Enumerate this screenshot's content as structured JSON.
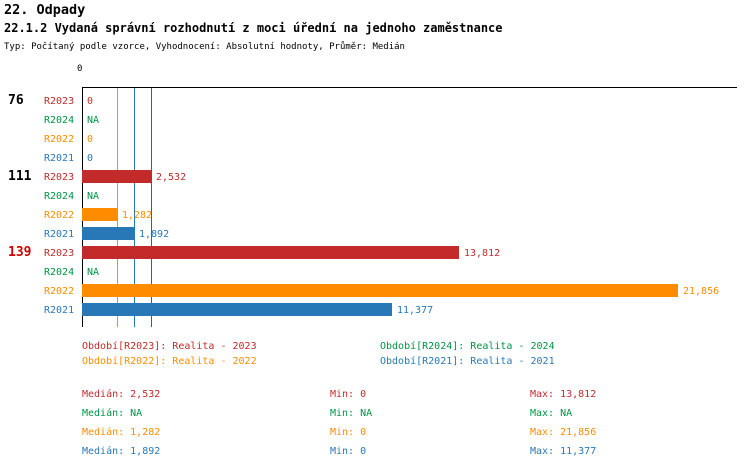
{
  "header": {
    "section": "22. Odpady",
    "title": "22.1.2 Vydaná správní rozhodnutí z moci úřední na jednoho zaměstnance",
    "subtitle": "Typ: Počítaný podle vzorce, Vyhodnocení: Absolutní hodnoty, Průměr: Medián"
  },
  "colors": {
    "r2023": "#c32b2b",
    "r2024": "#009444",
    "r2022": "#ff8c00",
    "r2021": "#2878b8",
    "highlight": "#cc0000",
    "axis": "#000000"
  },
  "chart_data": {
    "type": "bar",
    "orientation": "horizontal",
    "axis_tick": "0",
    "xlim": [
      0,
      21856
    ],
    "grid": false,
    "groups": [
      {
        "label": "76",
        "highlight": false,
        "bars": [
          {
            "series": "R2023",
            "value": 0,
            "display": "0"
          },
          {
            "series": "R2024",
            "value": null,
            "display": "NA"
          },
          {
            "series": "R2022",
            "value": 0,
            "display": "0"
          },
          {
            "series": "R2021",
            "value": 0,
            "display": "0"
          }
        ]
      },
      {
        "label": "111",
        "highlight": false,
        "bars": [
          {
            "series": "R2023",
            "value": 2532,
            "display": "2,532"
          },
          {
            "series": "R2024",
            "value": null,
            "display": "NA"
          },
          {
            "series": "R2022",
            "value": 1282,
            "display": "1,282"
          },
          {
            "series": "R2021",
            "value": 1892,
            "display": "1,892"
          }
        ]
      },
      {
        "label": "139",
        "highlight": true,
        "bars": [
          {
            "series": "R2023",
            "value": 13812,
            "display": "13,812"
          },
          {
            "series": "R2024",
            "value": null,
            "display": "NA"
          },
          {
            "series": "R2022",
            "value": 21856,
            "display": "21,856"
          },
          {
            "series": "R2021",
            "value": 11377,
            "display": "11,377"
          }
        ]
      }
    ],
    "median_lines": [
      {
        "series": "R2022",
        "value": 1282
      },
      {
        "series": "R2021",
        "value": 1892
      },
      {
        "series": "R2023",
        "value": 2532
      }
    ]
  },
  "legend": [
    {
      "series": "R2023",
      "label": "Období[R2023]: Realita - 2023"
    },
    {
      "series": "R2024",
      "label": "Období[R2024]: Realita - 2024"
    },
    {
      "series": "R2022",
      "label": "Období[R2022]: Realita - 2022"
    },
    {
      "series": "R2021",
      "label": "Období[R2021]: Realita - 2021"
    }
  ],
  "stats": [
    {
      "series": "R2023",
      "median": "Medián: 2,532",
      "min": "Min: 0",
      "max": "Max: 13,812"
    },
    {
      "series": "R2024",
      "median": "Medián: NA",
      "min": "Min: NA",
      "max": "Max: NA"
    },
    {
      "series": "R2022",
      "median": "Medián: 1,282",
      "min": "Min: 0",
      "max": "Max: 21,856"
    },
    {
      "series": "R2021",
      "median": "Medián: 1,892",
      "min": "Min: 0",
      "max": "Max: 11,377"
    }
  ]
}
